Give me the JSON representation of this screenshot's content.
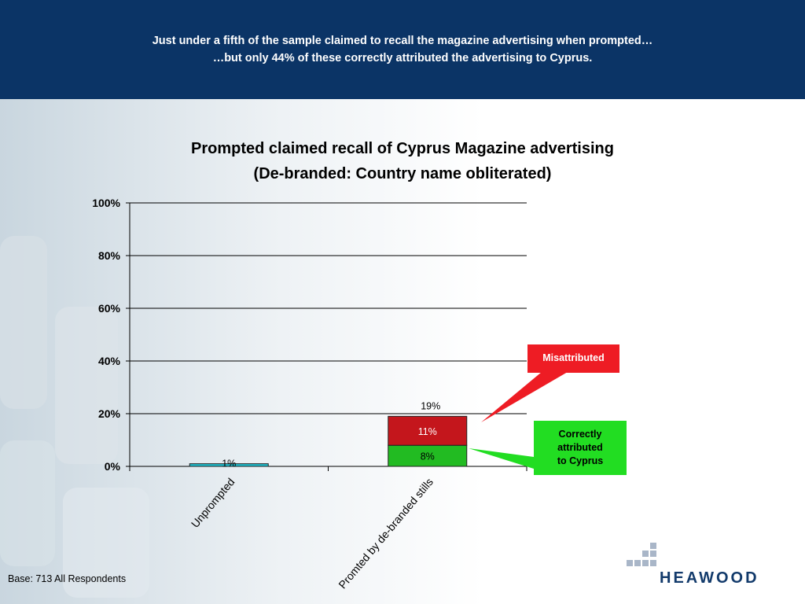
{
  "header": {
    "line1": "Just under a fifth of the sample claimed to recall the magazine advertising when prompted…",
    "line2": "…but only 44% of these correctly attributed the advertising to Cyprus."
  },
  "chart_data": {
    "type": "bar",
    "stacked": true,
    "title": "Prompted claimed recall of Cyprus Magazine advertising",
    "subtitle": "(De-branded: Country name obliterated)",
    "xlabel": "",
    "ylabel": "",
    "ylim": [
      0,
      100
    ],
    "yticks": [
      "0%",
      "20%",
      "40%",
      "60%",
      "80%",
      "100%"
    ],
    "grid": true,
    "categories": [
      "Unprompted",
      "Promted by de-branded stills"
    ],
    "series": [
      {
        "name": "",
        "values": [
          1,
          8
        ],
        "labels": [
          "1%",
          "8%"
        ],
        "color": "#1fbfcf"
      },
      {
        "name": "",
        "values": [
          0,
          11
        ],
        "labels": [
          "",
          "11%"
        ],
        "color": "#c4161c"
      }
    ],
    "totals": [
      null,
      "19%"
    ],
    "colors": {
      "correct": "#22bb22",
      "misattributed": "#c4161c",
      "unprompted": "#1fbfcf"
    }
  },
  "callouts": {
    "misattributed": "Misattributed",
    "correct_lines": [
      "Correctly",
      "attributed",
      "to Cyprus"
    ]
  },
  "footer": {
    "base": "Base: 713 All Respondents"
  },
  "logo": {
    "text": "HEAWOOD"
  }
}
